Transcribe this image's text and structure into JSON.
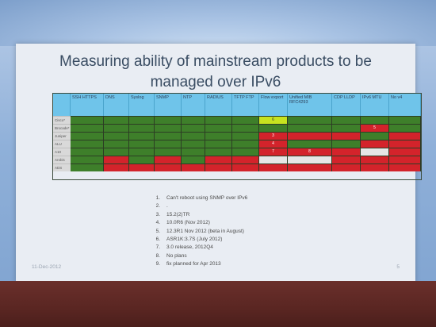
{
  "slide": {
    "title_line1": "Measuring ability of mainstream products to be",
    "title_line2": "managed over IPv6",
    "date": "11-Dec-2012",
    "page_number": "5"
  },
  "table": {
    "columns": [
      "",
      "SSH HTTPS",
      "DNS",
      "Syslog",
      "SNMP",
      "NTP",
      "RADIUS",
      "TFTP FTP",
      "Flow export",
      "Unified MIB RFC4293",
      "CDP LLDP",
      "IPv6 MTU",
      "No v4"
    ],
    "rows": [
      {
        "label": "Cisco*",
        "cells": [
          "g",
          "g",
          "g",
          "g",
          "g",
          "g",
          "g",
          {
            "c": "y",
            "t": "6"
          },
          "g",
          "g",
          "g",
          "g"
        ]
      },
      {
        "label": "Brocade*",
        "cells": [
          "g",
          "g",
          "g",
          "g",
          "g",
          "g",
          "g",
          "g",
          "g",
          "g",
          {
            "c": "r",
            "t": "5"
          },
          "g"
        ]
      },
      {
        "label": "Juniper",
        "cells": [
          "g",
          "g",
          "g",
          "g",
          "g",
          "g",
          "g",
          {
            "c": "r",
            "t": "3"
          },
          "r",
          "r",
          "g",
          "r"
        ]
      },
      {
        "label": "ALU",
        "cells": [
          "g",
          "g",
          "g",
          "g",
          "g",
          "g",
          "g",
          {
            "c": "r",
            "t": "4"
          },
          "g",
          "g",
          "r",
          "r"
        ]
      },
      {
        "label": "A10",
        "cells": [
          "g",
          "g",
          "g",
          "g",
          "g",
          "g",
          "g",
          {
            "c": "r",
            "t": "7"
          },
          {
            "c": "r",
            "t": "8"
          },
          "r",
          "e",
          "r"
        ]
      },
      {
        "label": "Arobis",
        "cells": [
          "g",
          "r",
          "g",
          "r",
          "g",
          "r",
          "r",
          "e",
          "e",
          "r",
          "r",
          "r"
        ]
      },
      {
        "label": "ADS",
        "cells": [
          "g",
          "r",
          "r",
          "r",
          "r",
          "r",
          "r",
          "r",
          "r",
          "r",
          "r",
          "r"
        ]
      }
    ]
  },
  "notes": [
    {
      "num": "1.",
      "text": "Can't reboot using SNMP over IPv6"
    },
    {
      "num": "2.",
      "text": "."
    },
    {
      "num": "3.",
      "text": "15.2(2)TR"
    },
    {
      "num": "4.",
      "text": "10.0R6 (Nov 2012)"
    },
    {
      "num": "5.",
      "text": "12.3R1 Nov 2012 (beta in August)"
    },
    {
      "num": "6.",
      "text": "ASR1K:3.7S (July 2012)"
    },
    {
      "num": "7.",
      "text": "3.0 release, 2012Q4"
    },
    {
      "num": "8.",
      "text": "No plans"
    },
    {
      "num": "9.",
      "text": "fix planned for Apr 2013"
    }
  ],
  "colors": {
    "green": "#3e7f2a",
    "red": "#d3232b",
    "yellow": "#c7e31f",
    "header_blue": "#6fc4ea"
  }
}
